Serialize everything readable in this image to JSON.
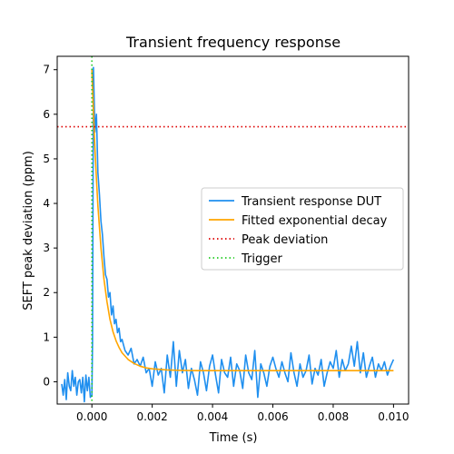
{
  "chart_data": {
    "type": "line",
    "title": "Transient frequency response",
    "xlabel": "Time (s)",
    "ylabel": "SEFT peak deviation (ppm)",
    "xlim": [
      -0.00115,
      0.0105
    ],
    "ylim": [
      -0.5,
      7.3
    ],
    "xticks": [
      0.0,
      0.002,
      0.004,
      0.006,
      0.008,
      0.01
    ],
    "xtick_labels": [
      "0.000",
      "0.002",
      "0.004",
      "0.006",
      "0.008",
      "0.010"
    ],
    "yticks": [
      0,
      1,
      2,
      3,
      4,
      5,
      6,
      7
    ],
    "ytick_labels": [
      "0",
      "1",
      "2",
      "3",
      "4",
      "5",
      "6",
      "7"
    ],
    "grid": false,
    "legend_position": "center-right",
    "series": [
      {
        "name": "Transient response DUT",
        "color": "#1f8fef",
        "style": "solid",
        "x": [
          -0.001,
          -0.00095,
          -0.0009,
          -0.00085,
          -0.0008,
          -0.00075,
          -0.0007,
          -0.00065,
          -0.0006,
          -0.00055,
          -0.0005,
          -0.00045,
          -0.0004,
          -0.00035,
          -0.0003,
          -0.00025,
          -0.0002,
          -0.00015,
          -0.0001,
          -5e-05,
          0.0,
          2e-05,
          5e-05,
          0.0001,
          0.00015,
          0.0002,
          0.00025,
          0.0003,
          0.00035,
          0.0004,
          0.00045,
          0.0005,
          0.00055,
          0.0006,
          0.00065,
          0.0007,
          0.00075,
          0.0008,
          0.00085,
          0.0009,
          0.00095,
          0.001,
          0.0011,
          0.0012,
          0.0013,
          0.0014,
          0.0015,
          0.0016,
          0.0017,
          0.0018,
          0.0019,
          0.002,
          0.0021,
          0.0022,
          0.0023,
          0.0024,
          0.0025,
          0.0026,
          0.0027,
          0.0028,
          0.0029,
          0.003,
          0.0031,
          0.0032,
          0.0033,
          0.0034,
          0.0035,
          0.0036,
          0.0037,
          0.0038,
          0.0039,
          0.004,
          0.0041,
          0.0042,
          0.0043,
          0.0044,
          0.0045,
          0.0046,
          0.0047,
          0.0048,
          0.0049,
          0.005,
          0.0051,
          0.0052,
          0.0053,
          0.0054,
          0.0055,
          0.0056,
          0.0057,
          0.0058,
          0.0059,
          0.006,
          0.0061,
          0.0062,
          0.0063,
          0.0064,
          0.0065,
          0.0066,
          0.0067,
          0.0068,
          0.0069,
          0.007,
          0.0071,
          0.0072,
          0.0073,
          0.0074,
          0.0075,
          0.0076,
          0.0077,
          0.0078,
          0.0079,
          0.008,
          0.0081,
          0.0082,
          0.0083,
          0.0084,
          0.0085,
          0.0086,
          0.0087,
          0.0088,
          0.0089,
          0.009,
          0.0091,
          0.0092,
          0.0093,
          0.0094,
          0.0095,
          0.0096,
          0.0097,
          0.0098,
          0.0099,
          0.01
        ],
        "y": [
          -0.05,
          -0.3,
          0.05,
          -0.4,
          0.2,
          -0.1,
          -0.2,
          0.25,
          -0.1,
          0.1,
          -0.3,
          0.0,
          0.05,
          -0.25,
          0.1,
          -0.45,
          0.15,
          -0.2,
          0.1,
          -0.35,
          -0.3,
          0.9,
          7.05,
          5.6,
          6.0,
          4.7,
          4.2,
          3.6,
          3.3,
          2.8,
          2.4,
          2.3,
          1.9,
          2.0,
          1.5,
          1.7,
          1.3,
          1.4,
          1.1,
          1.2,
          0.9,
          0.95,
          0.7,
          0.6,
          0.75,
          0.4,
          0.5,
          0.35,
          0.55,
          0.2,
          0.3,
          -0.1,
          0.45,
          0.15,
          0.3,
          -0.25,
          0.6,
          0.1,
          0.9,
          -0.1,
          0.7,
          0.2,
          0.5,
          -0.15,
          0.3,
          0.05,
          -0.3,
          0.45,
          0.2,
          -0.2,
          0.35,
          0.6,
          0.15,
          -0.25,
          0.5,
          0.2,
          0.1,
          0.55,
          -0.1,
          0.4,
          0.25,
          -0.15,
          0.6,
          0.2,
          0.05,
          0.7,
          -0.35,
          0.4,
          0.2,
          -0.1,
          0.35,
          0.55,
          0.3,
          0.1,
          0.45,
          0.2,
          0.0,
          0.65,
          0.2,
          -0.1,
          0.4,
          0.1,
          0.25,
          0.6,
          -0.05,
          0.3,
          0.15,
          0.5,
          -0.1,
          0.2,
          0.45,
          0.3,
          0.7,
          0.1,
          0.5,
          0.25,
          0.4,
          0.8,
          0.35,
          0.9,
          0.2,
          0.65,
          0.1,
          0.35,
          0.55,
          0.1,
          0.4,
          0.25,
          0.45,
          0.15,
          0.35,
          0.5
        ]
      },
      {
        "name": "Fitted exponential decay",
        "color": "#ffa500",
        "style": "solid",
        "x": [
          0.0,
          5e-05,
          0.0001,
          0.00015,
          0.0002,
          0.0003,
          0.0004,
          0.0005,
          0.0006,
          0.0007,
          0.0008,
          0.0009,
          0.001,
          0.0012,
          0.0014,
          0.0016,
          0.0018,
          0.002,
          0.0025,
          0.003,
          0.0035,
          0.004,
          0.005,
          0.006,
          0.007,
          0.008,
          0.009,
          0.01
        ],
        "y": [
          7.0,
          6.05,
          5.25,
          4.55,
          3.95,
          3.0,
          2.3,
          1.8,
          1.4,
          1.12,
          0.92,
          0.77,
          0.65,
          0.5,
          0.41,
          0.35,
          0.31,
          0.29,
          0.265,
          0.255,
          0.25,
          0.25,
          0.25,
          0.25,
          0.25,
          0.25,
          0.25,
          0.25
        ]
      },
      {
        "name": "Peak deviation",
        "color": "#dd0000",
        "style": "dotted",
        "y_value": 5.72
      },
      {
        "name": "Trigger",
        "color": "#22cc22",
        "style": "dotted",
        "x_value": 0.0
      }
    ]
  }
}
